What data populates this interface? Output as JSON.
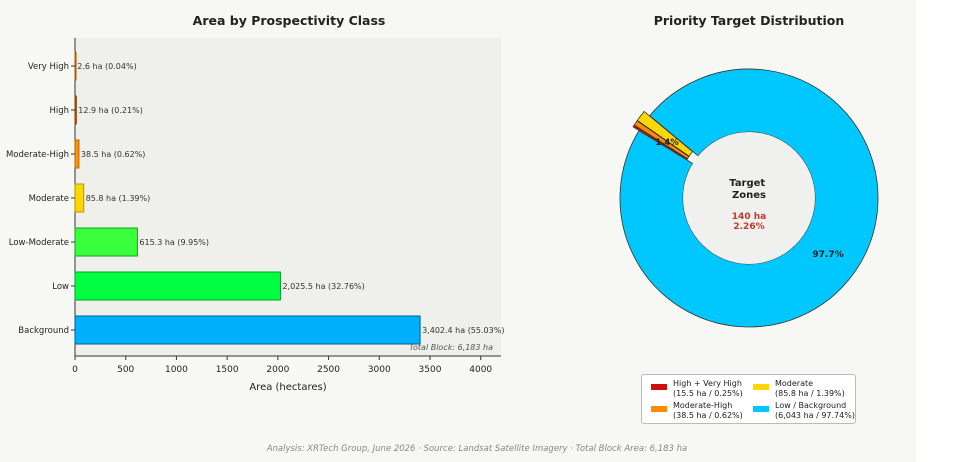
{
  "colors": {
    "very_high": "#ff7f00",
    "high": "#d95f02",
    "moderate_high": "#ff9500",
    "moderate": "#ffd700",
    "low_moderate": "#39ff3c",
    "low": "#00ff40",
    "background": "#00b0ff",
    "donut_background": "#00c8ff",
    "donut_high_very_high": "#cc1111",
    "donut_moderate_high": "#ff8c00",
    "donut_moderate": "#ffd700",
    "center_accent": "#c0392b"
  },
  "chart_data": [
    {
      "type": "bar",
      "orientation": "horizontal",
      "title": "Area by Prospectivity Class",
      "xlabel": "Area (hectares)",
      "ylabel": "",
      "xlim": [
        0,
        4200
      ],
      "xticks": [
        0,
        500,
        1000,
        1500,
        2000,
        2500,
        3000,
        3500,
        4000
      ],
      "grid": false,
      "categories": [
        "Very High",
        "High",
        "Moderate-High",
        "Moderate",
        "Low-Moderate",
        "Low",
        "Background"
      ],
      "values": [
        2.6,
        12.9,
        38.5,
        85.8,
        615.3,
        2025.5,
        3402.4
      ],
      "value_labels": [
        "2.6 ha  (0.04%)",
        "12.9 ha  (0.21%)",
        "38.5 ha  (0.62%)",
        "85.8 ha  (1.39%)",
        "615.3 ha  (9.95%)",
        "2,025.5 ha  (32.76%)",
        "3,402.4 ha  (55.03%)"
      ],
      "annotation": "Total Block: 6,183 ha"
    },
    {
      "type": "pie",
      "variant": "donut",
      "title": "Priority Target Distribution",
      "slices": [
        {
          "label": "High + Very High",
          "value": 15.5,
          "percent": 0.25
        },
        {
          "label": "Moderate-High",
          "value": 38.5,
          "percent": 0.62
        },
        {
          "label": "Moderate",
          "value": 85.8,
          "percent": 1.39
        },
        {
          "label": "Low / Background",
          "value": 6043,
          "percent": 97.74
        }
      ],
      "slice_labels": {
        "moderate": "1.4%",
        "background": "97.7%"
      },
      "center_title": "Target\nZones",
      "center_value": "140 ha",
      "center_percent": "2.26%",
      "legend_placement": "bottom"
    }
  ],
  "legend": {
    "items": [
      {
        "name": "High + Very High",
        "detail": "(15.5 ha / 0.25%)",
        "color": "#cc1111"
      },
      {
        "name": "Moderate-High",
        "detail": "(38.5 ha / 0.62%)",
        "color": "#ff8c00"
      },
      {
        "name": "Moderate",
        "detail": "(85.8 ha / 1.39%)",
        "color": "#ffd700"
      },
      {
        "name": "Low / Background",
        "detail": "(6,043 ha / 97.74%)",
        "color": "#00c8ff"
      }
    ]
  },
  "footer": "Analysis: XRTech Group, June 2026  ·  Source: Landsat Satellite Imagery  ·  Total Block Area: 6,183 ha"
}
